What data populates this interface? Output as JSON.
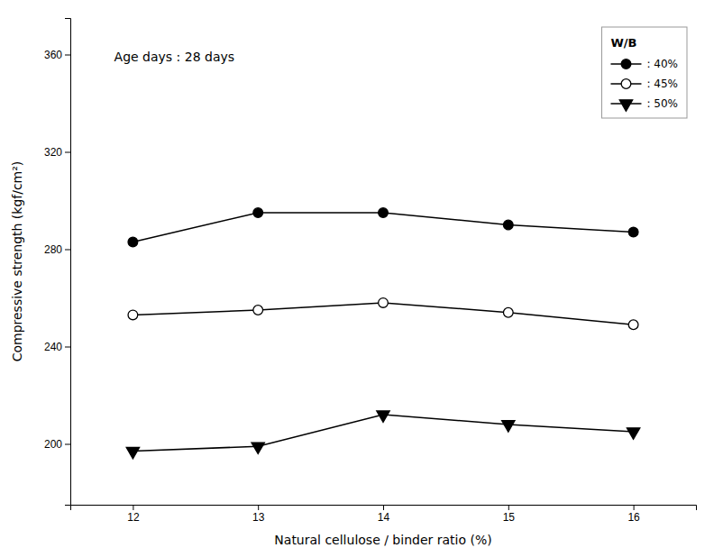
{
  "chart_data": {
    "type": "line",
    "x": [
      12,
      13,
      14,
      15,
      16
    ],
    "series": [
      {
        "name": ": 40%",
        "values": [
          283,
          295,
          295,
          290,
          287
        ],
        "color": "black",
        "marker": "circle"
      },
      {
        "name": ": 45%",
        "values": [
          253,
          255,
          258,
          254,
          249
        ],
        "color": "black",
        "marker": "circle-open"
      },
      {
        "name": ": 50%",
        "values": [
          197,
          199,
          212,
          208,
          205
        ],
        "color": "black",
        "marker": "triangle-down"
      }
    ],
    "xlabel": "Natural cellulose / binder ratio (%)",
    "ylabel": "Compressive strength (kgf/cm²)",
    "annotation": "Age days : 28 days",
    "legend_title": "W/B",
    "legend": "upper right",
    "grid": false,
    "xlim": [
      11.5,
      16.5
    ],
    "ylim": [
      175,
      375
    ],
    "xticks": [
      12,
      13,
      14,
      15,
      16
    ],
    "yticks": [
      200,
      240,
      280,
      320,
      360
    ]
  }
}
